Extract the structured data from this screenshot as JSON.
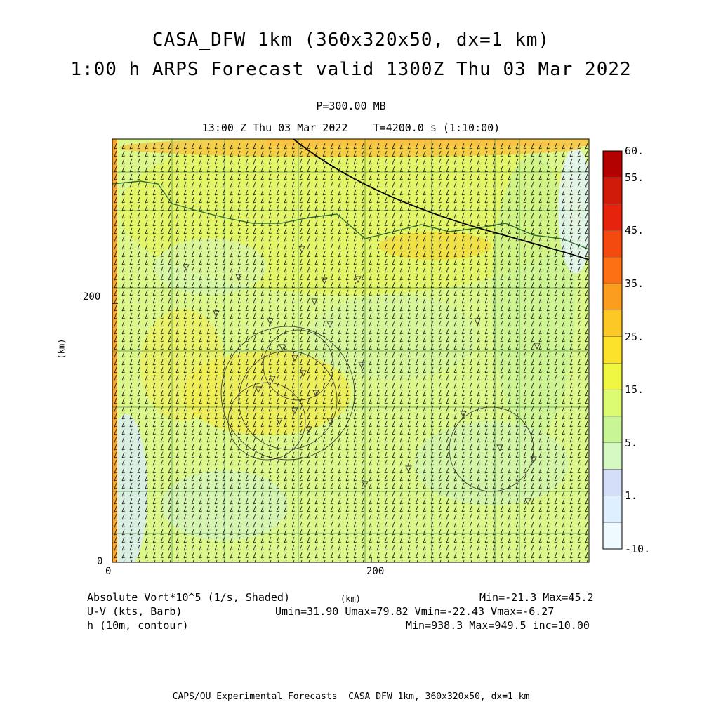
{
  "header": {
    "title_line1": "CASA_DFW 1km (360x320x50, dx=1 km)",
    "title_line2": "1:00 h ARPS Forecast valid 1300Z Thu 03 Mar 2022",
    "level": "P=300.00 MB",
    "time": "13:00 Z Thu 03 Mar 2022    T=4200.0 s (1:10:00)"
  },
  "axes": {
    "x_unit": "(km)",
    "y_unit": "(km)",
    "x_ticks": [
      "0",
      "200"
    ],
    "y_ticks": [
      "0",
      "200"
    ]
  },
  "colorbar": {
    "labels": [
      "60.",
      "55.",
      "45.",
      "35.",
      "25.",
      "15.",
      "5.",
      "1.",
      "-10."
    ],
    "colors": [
      "#b30000",
      "#d01a0a",
      "#e6240e",
      "#f44a10",
      "#fe7014",
      "#fb9d1e",
      "#fbc826",
      "#fde22c",
      "#f0f742",
      "#dcfa72",
      "#c8f696",
      "#d6f9c4",
      "#d4def8",
      "#deefff",
      "#eefaff"
    ]
  },
  "footer": {
    "vort_label": "Absolute Vort*10^5 (1/s, Shaded)",
    "vort_stats": "Min=-21.3 Max=45.2",
    "wind_label": "U-V (kts, Barb)",
    "wind_stats": "Umin=31.90 Umax=79.82 Vmin=-22.43 Vmax=-6.27",
    "h_label": "h (10m, contour)",
    "h_stats": "Min=938.3 Max=949.5 inc=10.00",
    "credit": "CAPS/OU Experimental Forecasts  CASA DFW 1km, 360x320x50, dx=1 km"
  },
  "chart_data": {
    "type": "heatmap",
    "title": "CASA_DFW 1km (360x320x50, dx=1 km)",
    "xlabel": "(km)",
    "ylabel": "(km)",
    "xlim": [
      0,
      368
    ],
    "ylim": [
      0,
      327
    ],
    "x_ticks": [
      0,
      200
    ],
    "y_ticks": [
      0,
      200
    ],
    "field": "Absolute Vort*10^5 (1/s, Shaded)",
    "field_min": -21.3,
    "field_max": 45.2,
    "contour_levels": [
      -10,
      1,
      5,
      15,
      25,
      35,
      45,
      55,
      60
    ],
    "wind": {
      "umin": 31.9,
      "umax": 79.82,
      "vmin": -22.43,
      "vmax": -6.27
    },
    "height": {
      "min": 938.3,
      "max": 949.5,
      "inc": 10.0
    },
    "grid": false
  }
}
